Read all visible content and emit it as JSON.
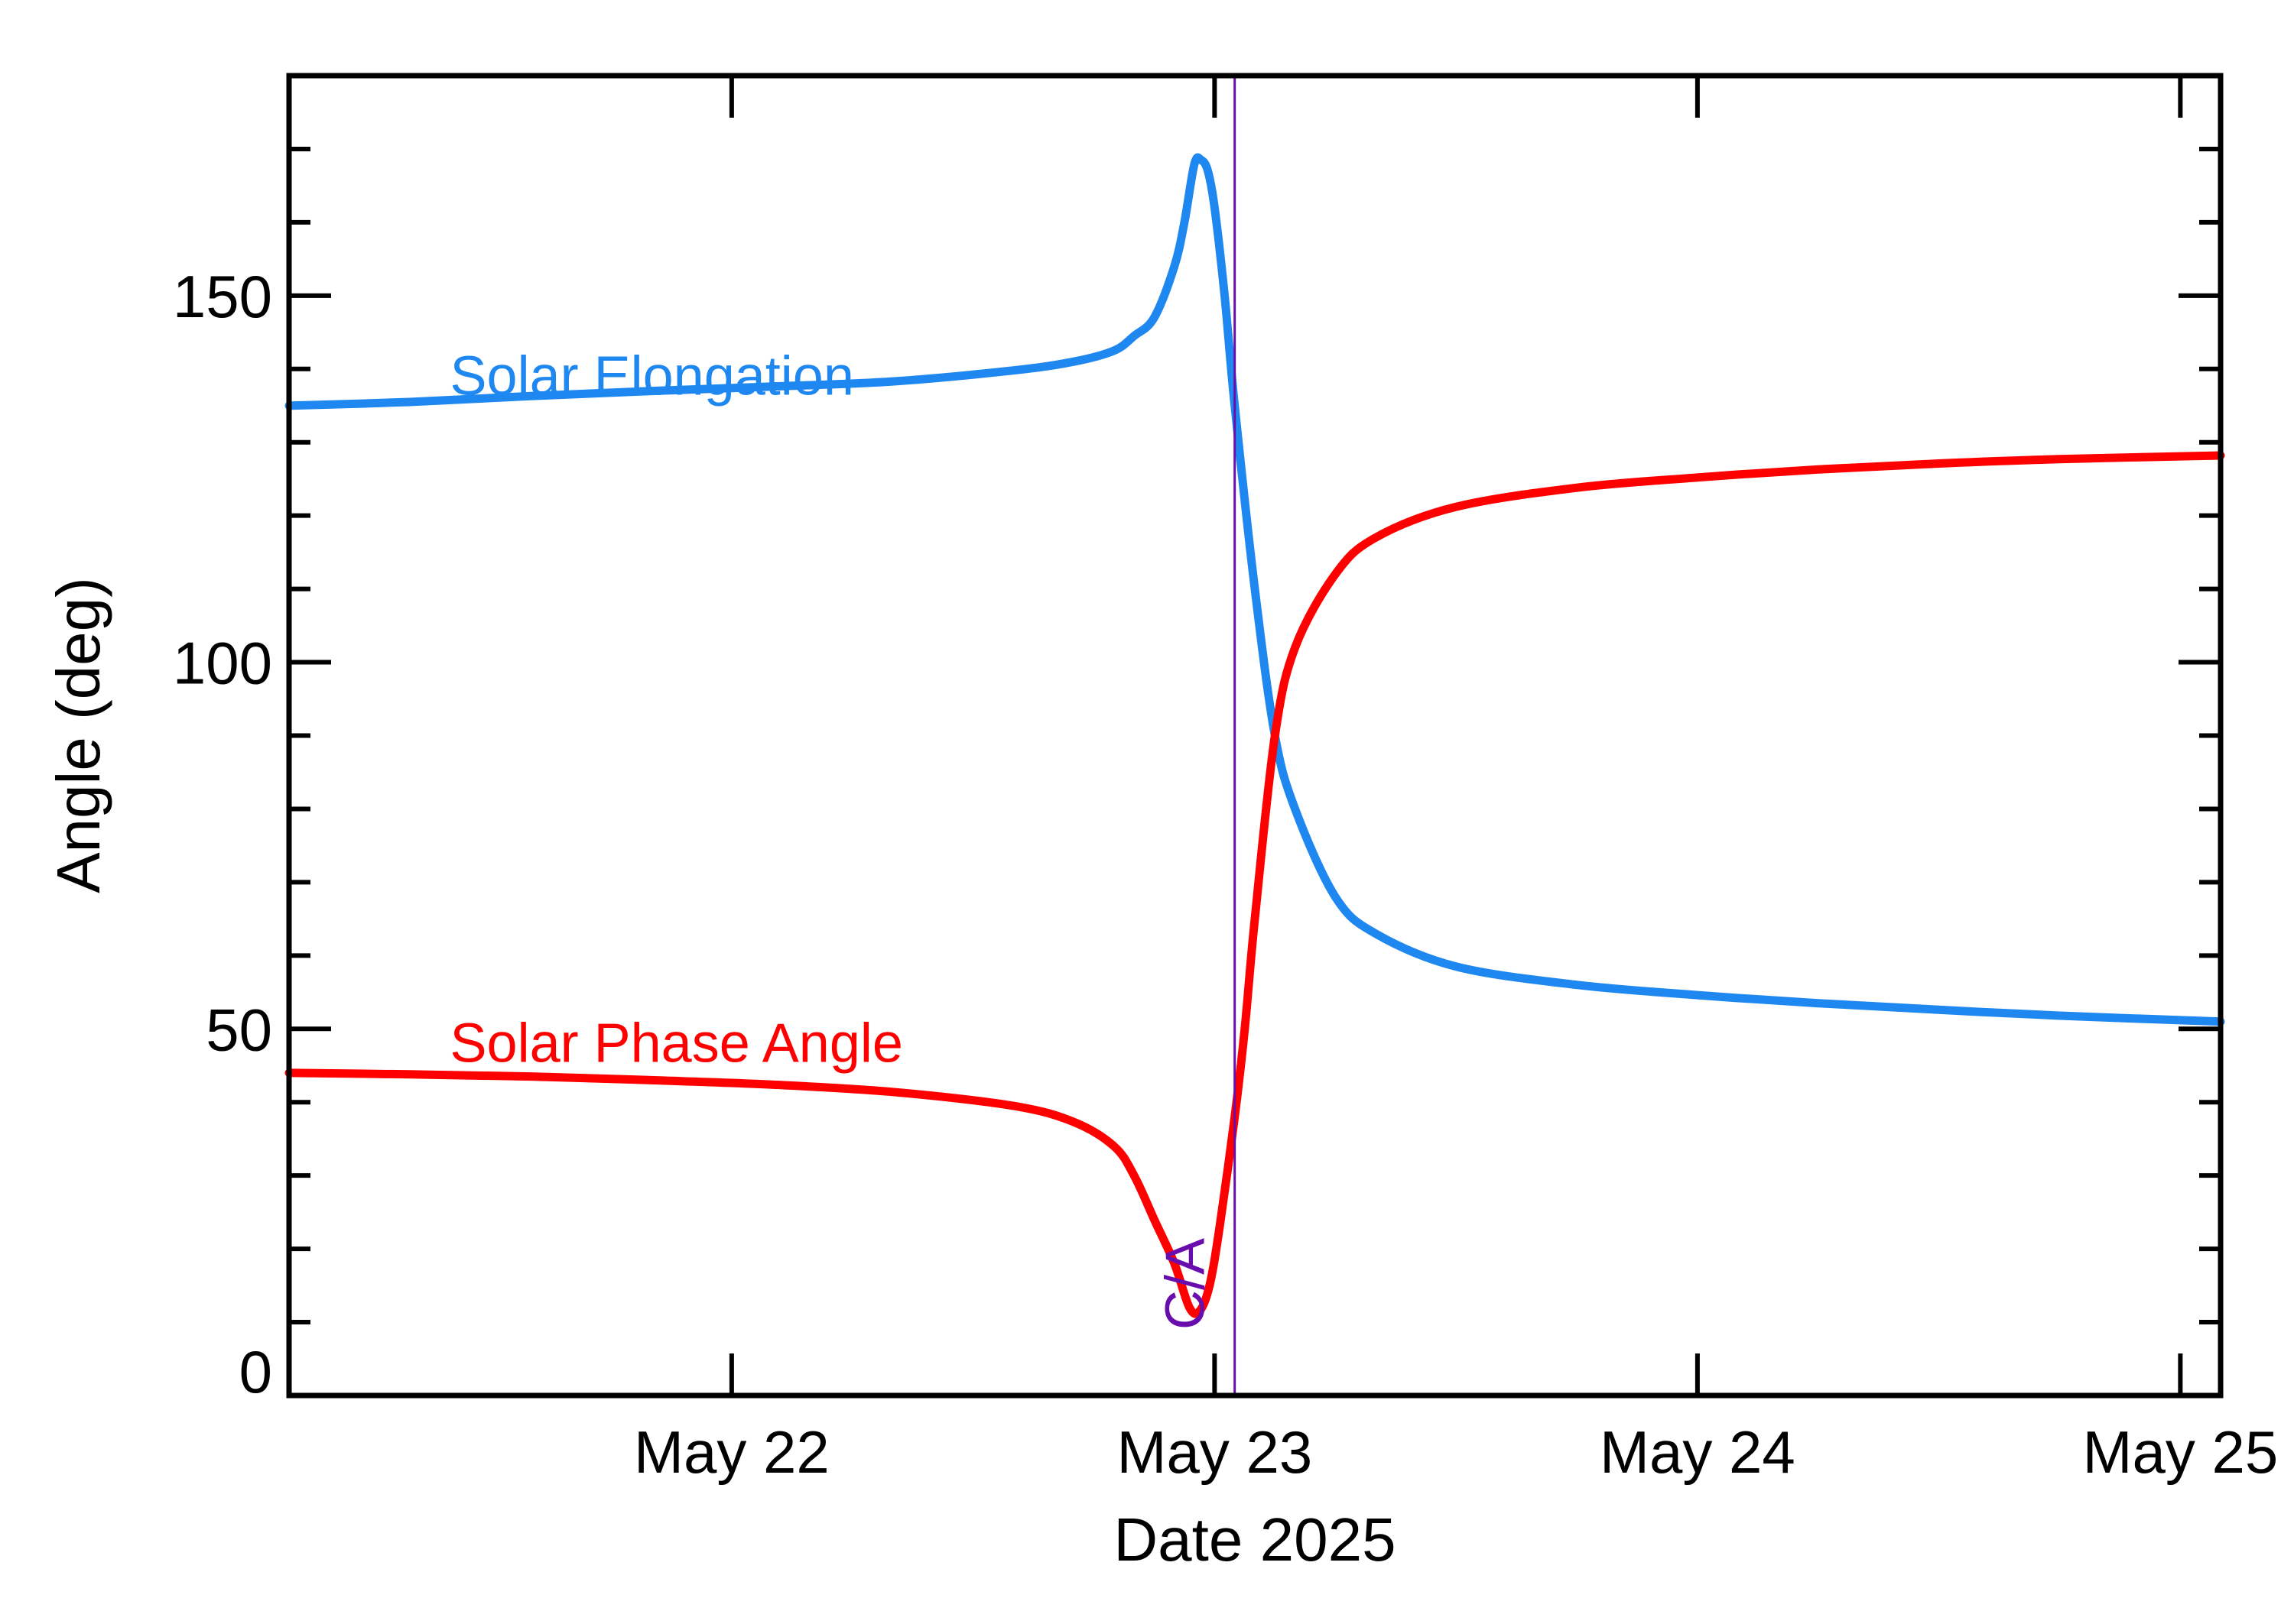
{
  "chart_data": {
    "type": "line",
    "title": "",
    "xlabel": "Date 2025",
    "ylabel": "Angle (deg)",
    "xlim": [
      "2025-05-21 02:00",
      "2025-05-25 02:00"
    ],
    "ylim": [
      0,
      180
    ],
    "x_ticks": [
      {
        "date": "2025-05-22",
        "label": "May 22"
      },
      {
        "date": "2025-05-23",
        "label": "May 23"
      },
      {
        "date": "2025-05-24",
        "label": "May 24"
      },
      {
        "date": "2025-05-25",
        "label": "May 25"
      }
    ],
    "y_ticks": [
      {
        "value": 0,
        "label": "0"
      },
      {
        "value": 50,
        "label": "50"
      },
      {
        "value": 100,
        "label": "100"
      },
      {
        "value": 150,
        "label": "150"
      }
    ],
    "y_minor_step": 10,
    "grid": false,
    "closest_approach": {
      "date": "2025-05-23 01:00",
      "label": "C/A",
      "color": "#6a0dad"
    },
    "series": [
      {
        "name": "Solar Elongation",
        "color": "#1e88f0",
        "points": [
          [
            "2025-05-21 02:00",
            135.0
          ],
          [
            "2025-05-21 08:00",
            135.5
          ],
          [
            "2025-05-21 14:00",
            136.3
          ],
          [
            "2025-05-21 20:00",
            137.0
          ],
          [
            "2025-05-22 02:00",
            137.6
          ],
          [
            "2025-05-22 08:00",
            138.3
          ],
          [
            "2025-05-22 14:00",
            139.8
          ],
          [
            "2025-05-22 17:00",
            141.0
          ],
          [
            "2025-05-22 19:00",
            142.5
          ],
          [
            "2025-05-22 20:00",
            144.5
          ],
          [
            "2025-05-22 21:00",
            147.0
          ],
          [
            "2025-05-22 22:00",
            154.0
          ],
          [
            "2025-05-22 22:30",
            160.0
          ],
          [
            "2025-05-22 23:00",
            168.0
          ],
          [
            "2025-05-22 23:20",
            168.5
          ],
          [
            "2025-05-22 23:40",
            167.0
          ],
          [
            "2025-05-23 00:00",
            162.0
          ],
          [
            "2025-05-23 00:30",
            150.0
          ],
          [
            "2025-05-23 01:00",
            135.0
          ],
          [
            "2025-05-23 02:00",
            110.0
          ],
          [
            "2025-05-23 03:00",
            90.0
          ],
          [
            "2025-05-23 04:00",
            80.0
          ],
          [
            "2025-05-23 06:00",
            68.0
          ],
          [
            "2025-05-23 08:00",
            63.0
          ],
          [
            "2025-05-23 12:00",
            58.5
          ],
          [
            "2025-05-23 18:00",
            56.0
          ],
          [
            "2025-05-24 00:00",
            54.6
          ],
          [
            "2025-05-24 06:00",
            53.5
          ],
          [
            "2025-05-24 12:00",
            52.6
          ],
          [
            "2025-05-24 18:00",
            51.8
          ],
          [
            "2025-05-25 02:00",
            51.0
          ]
        ]
      },
      {
        "name": "Solar Phase Angle",
        "color": "#ff0000",
        "points": [
          [
            "2025-05-21 02:00",
            44.0
          ],
          [
            "2025-05-21 08:00",
            43.8
          ],
          [
            "2025-05-21 14:00",
            43.5
          ],
          [
            "2025-05-21 20:00",
            43.0
          ],
          [
            "2025-05-22 02:00",
            42.4
          ],
          [
            "2025-05-22 08:00",
            41.4
          ],
          [
            "2025-05-22 14:00",
            39.5
          ],
          [
            "2025-05-22 17:00",
            37.3
          ],
          [
            "2025-05-22 19:00",
            34.0
          ],
          [
            "2025-05-22 20:00",
            30.0
          ],
          [
            "2025-05-22 21:00",
            24.0
          ],
          [
            "2025-05-22 22:00",
            18.0
          ],
          [
            "2025-05-22 22:45",
            12.0
          ],
          [
            "2025-05-22 23:15",
            11.5
          ],
          [
            "2025-05-22 23:45",
            15.0
          ],
          [
            "2025-05-23 00:15",
            23.0
          ],
          [
            "2025-05-23 01:00",
            38.0
          ],
          [
            "2025-05-23 01:30",
            50.0
          ],
          [
            "2025-05-23 02:00",
            65.0
          ],
          [
            "2025-05-23 03:00",
            90.0
          ],
          [
            "2025-05-23 04:00",
            102.0
          ],
          [
            "2025-05-23 06:00",
            112.0
          ],
          [
            "2025-05-23 08:00",
            117.0
          ],
          [
            "2025-05-23 12:00",
            121.2
          ],
          [
            "2025-05-23 18:00",
            123.8
          ],
          [
            "2025-05-24 00:00",
            125.2
          ],
          [
            "2025-05-24 06:00",
            126.3
          ],
          [
            "2025-05-24 12:00",
            127.1
          ],
          [
            "2025-05-24 18:00",
            127.7
          ],
          [
            "2025-05-25 02:00",
            128.2
          ]
        ]
      }
    ],
    "annotations": [
      {
        "text": "Solar Elongation",
        "color": "#1e88f0",
        "date": "2025-05-21 10:00",
        "y": 136.5
      },
      {
        "text": "Solar Phase Angle",
        "color": "#ff0000",
        "date": "2025-05-21 10:00",
        "y": 45.5
      }
    ]
  }
}
